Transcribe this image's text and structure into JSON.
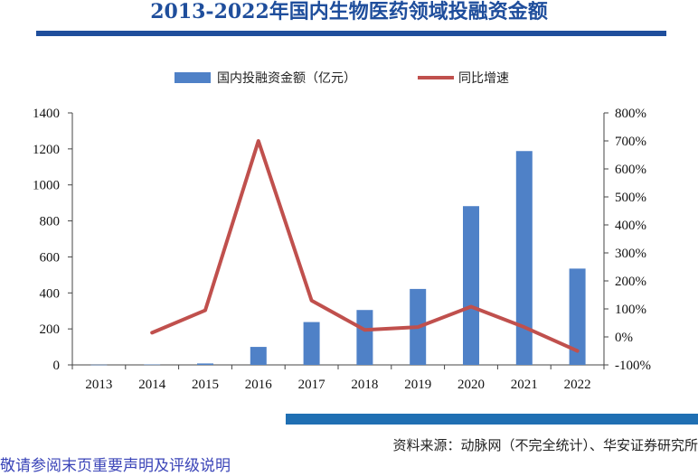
{
  "header": {
    "title": "2013-2022年国内生物医药领域投融资金额"
  },
  "footer": {
    "source": "资料来源：动脉网（不完全统计）、华安证券研究所",
    "disclaimer": "敬请参阅末页重要声明及评级说明"
  },
  "colors": {
    "title": "#1f4e9c",
    "bar": "#4f81c7",
    "line": "#c0504d",
    "source_bar": "#1f6fb3",
    "disclaimer": "#3b45b8"
  },
  "chart_data": {
    "type": "bar",
    "categories": [
      "2013",
      "2014",
      "2015",
      "2016",
      "2017",
      "2018",
      "2019",
      "2020",
      "2021",
      "2022"
    ],
    "series": [
      {
        "name": "国内投融资金额（亿元）",
        "type": "bar",
        "axis": "left",
        "values": [
          1,
          2,
          8,
          100,
          238,
          305,
          422,
          882,
          1188,
          535
        ]
      },
      {
        "name": "同比增速",
        "type": "line",
        "axis": "right",
        "values": [
          null,
          15,
          95,
          700,
          130,
          25,
          35,
          108,
          35,
          -50
        ]
      }
    ],
    "y_left": {
      "ylim": [
        0,
        1400
      ],
      "ticks": [
        "0",
        "200",
        "400",
        "600",
        "800",
        "1000",
        "1200",
        "1400"
      ]
    },
    "y_right": {
      "ylim": [
        -100,
        800
      ],
      "ticks": [
        "-100%",
        "0%",
        "100%",
        "200%",
        "300%",
        "400%",
        "500%",
        "600%",
        "700%",
        "800%"
      ]
    },
    "legend_position": "top-center",
    "grid": false
  }
}
